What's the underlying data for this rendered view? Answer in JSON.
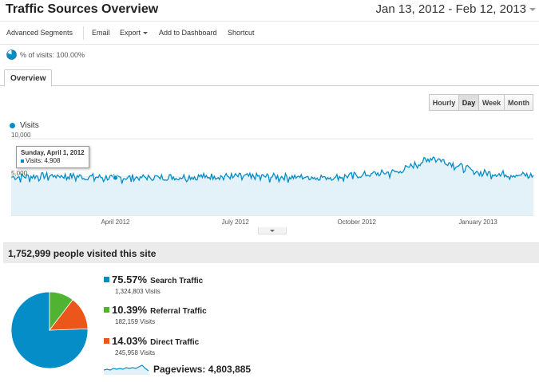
{
  "header": {
    "title": "Traffic Sources Overview",
    "date_range": "Jan 13, 2012 - Feb 12, 2013"
  },
  "toolbar": {
    "advanced_segments": "Advanced Segments",
    "email": "Email",
    "export": "Export",
    "add_to_dashboard": "Add to Dashboard",
    "shortcut": "Shortcut"
  },
  "segment": {
    "label": "% of visits: 100.00%"
  },
  "tabs": [
    {
      "label": "Overview"
    }
  ],
  "granularity": {
    "buttons": [
      {
        "label": "Hourly"
      },
      {
        "label": "Day"
      },
      {
        "label": "Week"
      },
      {
        "label": "Month"
      }
    ],
    "active": "Day"
  },
  "chart_legend": {
    "series_name": "Visits"
  },
  "chart_data": {
    "type": "area",
    "title": "",
    "series": [
      {
        "name": "Visits",
        "color": "#058dc7"
      }
    ],
    "ylim": [
      0,
      10000
    ],
    "y_ticks": [
      "10,000",
      "5,000"
    ],
    "y_tick_values": [
      10000,
      5000
    ],
    "x_ticks": [
      "April 2012",
      "July 2012",
      "October 2012",
      "January 2013"
    ],
    "x_tick_dates": [
      "2012-04-01",
      "2012-07-01",
      "2012-10-01",
      "2013-01-01"
    ],
    "x_range": [
      "2012-01-13",
      "2013-02-12"
    ],
    "grid": true,
    "sample_points": [
      {
        "date": "2012-01-13",
        "visits": 5000
      },
      {
        "date": "2012-02-15",
        "visits": 5200
      },
      {
        "date": "2012-04-01",
        "visits": 4908
      },
      {
        "date": "2012-06-15",
        "visits": 5100
      },
      {
        "date": "2012-09-15",
        "visits": 5000
      },
      {
        "date": "2012-11-01",
        "visits": 5700
      },
      {
        "date": "2012-11-28",
        "visits": 7600
      },
      {
        "date": "2013-01-01",
        "visits": 5600
      },
      {
        "date": "2013-02-12",
        "visits": 5200
      }
    ]
  },
  "tooltip": {
    "date": "Sunday, April 1, 2012",
    "value": "Visits: 4,908"
  },
  "summary": {
    "headline": "1,752,999 people visited this site"
  },
  "pie": {
    "slices": [
      {
        "name": "Search Traffic",
        "pct": "75.57%",
        "value": 75.57,
        "visits": "1,324,803 Visits",
        "color": "#058dc7"
      },
      {
        "name": "Referral Traffic",
        "pct": "10.39%",
        "value": 10.39,
        "visits": "182,159 Visits",
        "color": "#50b432"
      },
      {
        "name": "Direct Traffic",
        "pct": "14.03%",
        "value": 14.03,
        "visits": "245,958 Visits",
        "color": "#ed561b"
      }
    ]
  },
  "pageviews": {
    "label": "Pageviews: 4,803,885"
  }
}
